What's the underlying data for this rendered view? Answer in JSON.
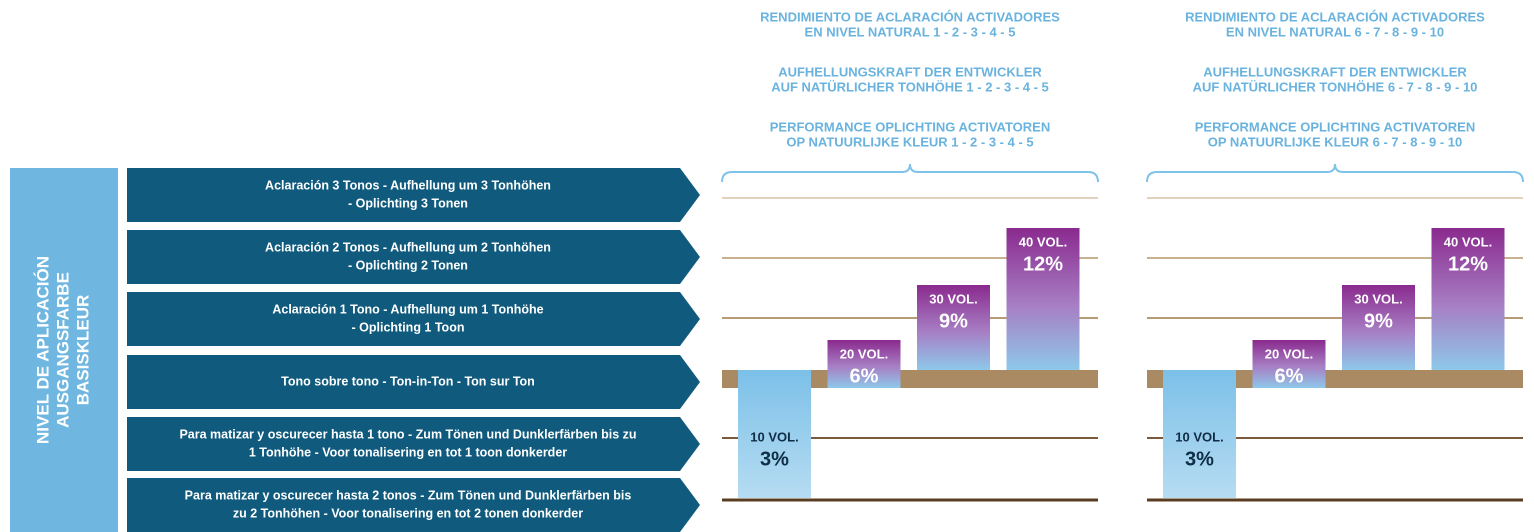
{
  "left_label": [
    "NIVEL DE APLICACIÓN",
    "AUSGANGSFARBE",
    "BASISKLEUR"
  ],
  "rows": [
    [
      "Aclaración 3 Tonos - Aufhellung um 3 Tonhöhen",
      "- Oplichting 3 Tonen"
    ],
    [
      "Aclaración 2 Tonos - Aufhellung um 2 Tonhöhen",
      "- Oplichting 2 Tonen"
    ],
    [
      "Aclaración 1 Tono - Aufhellung um 1 Tonhöhe",
      "- Oplichting 1 Toon"
    ],
    [
      "Tono sobre tono - Ton-in-Ton - Ton sur Ton"
    ],
    [
      "Para matizar y oscurecer hasta 1 tono - Zum Tönen und Dunklerfärben bis zu",
      "1 Tonhöhe - Voor tonalisering en tot 1 toon donkerder"
    ],
    [
      "Para matizar y oscurecer hasta 2 tonos  - Zum Tönen und Dunklerfärben bis",
      "zu 2 Tonhöhen - Voor tonalisering en tot 2 tonen donkerder"
    ]
  ],
  "panels": [
    {
      "headings": [
        [
          "RENDIMIENTO DE ACLARACIÓN ACTIVADORES",
          "EN NIVEL NATURAL 1 - 2 - 3 - 4 - 5"
        ],
        [
          "AUFHELLUNGSKRAFT DER ENTWICKLER",
          "AUF NATÜRLICHER TONHÖHE 1 - 2 - 3 - 4 - 5"
        ],
        [
          "PERFORMANCE OPLICHTING ACTIVATOREN",
          "OP NATUURLIJKE KLEUR 1 - 2 - 3 - 4 - 5"
        ]
      ],
      "bars": [
        {
          "vol": "10 VOL.",
          "pct": "3%"
        },
        {
          "vol": "20 VOL.",
          "pct": "6%"
        },
        {
          "vol": "30 VOL.",
          "pct": "9%"
        },
        {
          "vol": "40 VOL.",
          "pct": "12%"
        }
      ]
    },
    {
      "headings": [
        [
          "RENDIMIENTO DE ACLARACIÓN ACTIVADORES",
          "EN NIVEL NATURAL 6 - 7 - 8 - 9 - 10"
        ],
        [
          "AUFHELLUNGSKRAFT DER ENTWICKLER",
          "AUF NATÜRLICHER TONHÖHE 6 - 7 - 8 - 9 - 10"
        ],
        [
          "PERFORMANCE OPLICHTING ACTIVATOREN",
          "OP NATUURLIJKE KLEUR 6 - 7 - 8 - 9 - 10"
        ]
      ],
      "bars": [
        {
          "vol": "10 VOL.",
          "pct": "3%"
        },
        {
          "vol": "20 VOL.",
          "pct": "6%"
        },
        {
          "vol": "30 VOL.",
          "pct": "9%"
        },
        {
          "vol": "40 VOL.",
          "pct": "12%"
        }
      ]
    }
  ]
}
